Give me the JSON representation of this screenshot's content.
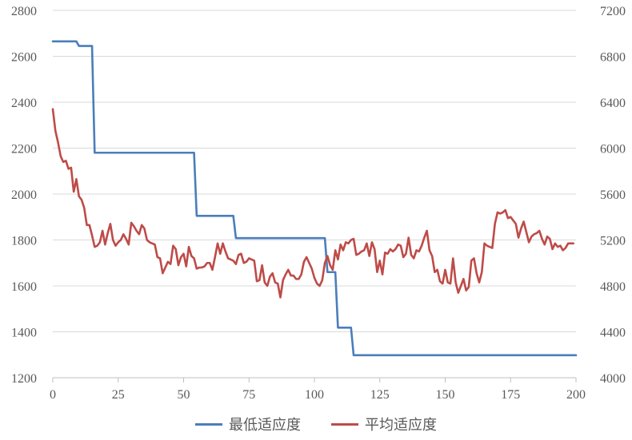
{
  "chart_data": {
    "type": "line",
    "title": "",
    "xlabel": "",
    "ylabel": "",
    "xlim": [
      0,
      200
    ],
    "x_ticks": [
      "0",
      "25",
      "50",
      "75",
      "100",
      "125",
      "150",
      "175",
      "200"
    ],
    "ylim_left": [
      1200,
      2800
    ],
    "y_left_ticks": [
      "1200",
      "1400",
      "1600",
      "1800",
      "2000",
      "2200",
      "2400",
      "2600",
      "2800"
    ],
    "ylim_right": [
      4000,
      7200
    ],
    "y_right_ticks": [
      "4000",
      "4400",
      "4800",
      "5200",
      "5600",
      "6000",
      "6400",
      "6800",
      "7200"
    ],
    "grid": "horizontal",
    "legend_position": "bottom",
    "series": [
      {
        "name": "最低适应度",
        "axis": "left",
        "color": "#4a7ebb",
        "points": [
          [
            0,
            2665
          ],
          [
            9,
            2665
          ],
          [
            10,
            2645
          ],
          [
            15,
            2645
          ],
          [
            16,
            2180
          ],
          [
            54,
            2180
          ],
          [
            55,
            1905
          ],
          [
            69,
            1905
          ],
          [
            70,
            1808
          ],
          [
            104,
            1808
          ],
          [
            105,
            1660
          ],
          [
            108,
            1660
          ],
          [
            109,
            1418
          ],
          [
            114,
            1418
          ],
          [
            115,
            1298
          ],
          [
            200,
            1298
          ]
        ]
      },
      {
        "name": "平均适应度",
        "axis": "right",
        "color": "#be4b48",
        "points": [
          [
            0,
            6340
          ],
          [
            1,
            6150
          ],
          [
            2,
            6050
          ],
          [
            3,
            5930
          ],
          [
            4,
            5880
          ],
          [
            5,
            5890
          ],
          [
            6,
            5820
          ],
          [
            7,
            5830
          ],
          [
            8,
            5620
          ],
          [
            9,
            5730
          ],
          [
            10,
            5580
          ],
          [
            11,
            5550
          ],
          [
            12,
            5480
          ],
          [
            13,
            5330
          ],
          [
            14,
            5330
          ],
          [
            15,
            5240
          ],
          [
            16,
            5140
          ],
          [
            17,
            5150
          ],
          [
            18,
            5180
          ],
          [
            19,
            5280
          ],
          [
            20,
            5160
          ],
          [
            21,
            5260
          ],
          [
            22,
            5340
          ],
          [
            23,
            5200
          ],
          [
            24,
            5150
          ],
          [
            25,
            5180
          ],
          [
            26,
            5200
          ],
          [
            27,
            5250
          ],
          [
            28,
            5210
          ],
          [
            29,
            5160
          ],
          [
            30,
            5350
          ],
          [
            31,
            5320
          ],
          [
            32,
            5280
          ],
          [
            33,
            5250
          ],
          [
            34,
            5330
          ],
          [
            35,
            5300
          ],
          [
            36,
            5200
          ],
          [
            37,
            5180
          ],
          [
            38,
            5170
          ],
          [
            39,
            5160
          ],
          [
            40,
            5050
          ],
          [
            41,
            5040
          ],
          [
            42,
            4910
          ],
          [
            43,
            4960
          ],
          [
            44,
            5010
          ],
          [
            45,
            4990
          ],
          [
            46,
            5150
          ],
          [
            47,
            5120
          ],
          [
            48,
            4980
          ],
          [
            49,
            5050
          ],
          [
            50,
            5080
          ],
          [
            51,
            4970
          ],
          [
            52,
            5140
          ],
          [
            53,
            5060
          ],
          [
            54,
            5040
          ],
          [
            55,
            4950
          ],
          [
            56,
            4960
          ],
          [
            57,
            4960
          ],
          [
            58,
            4970
          ],
          [
            59,
            5000
          ],
          [
            60,
            5000
          ],
          [
            61,
            4940
          ],
          [
            62,
            5050
          ],
          [
            63,
            5170
          ],
          [
            64,
            5080
          ],
          [
            65,
            5170
          ],
          [
            66,
            5100
          ],
          [
            67,
            5040
          ],
          [
            68,
            5030
          ],
          [
            69,
            5020
          ],
          [
            70,
            4990
          ],
          [
            71,
            5070
          ],
          [
            72,
            5080
          ],
          [
            73,
            5000
          ],
          [
            74,
            5010
          ],
          [
            75,
            5040
          ],
          [
            76,
            5030
          ],
          [
            77,
            5020
          ],
          [
            78,
            4840
          ],
          [
            79,
            4850
          ],
          [
            80,
            4980
          ],
          [
            81,
            4830
          ],
          [
            82,
            4800
          ],
          [
            83,
            4880
          ],
          [
            84,
            4910
          ],
          [
            85,
            4830
          ],
          [
            86,
            4820
          ],
          [
            87,
            4700
          ],
          [
            88,
            4850
          ],
          [
            89,
            4900
          ],
          [
            90,
            4940
          ],
          [
            91,
            4890
          ],
          [
            92,
            4890
          ],
          [
            93,
            4860
          ],
          [
            94,
            4860
          ],
          [
            95,
            4900
          ],
          [
            96,
            5010
          ],
          [
            97,
            5050
          ],
          [
            98,
            5000
          ],
          [
            99,
            4950
          ],
          [
            100,
            4870
          ],
          [
            101,
            4820
          ],
          [
            102,
            4800
          ],
          [
            103,
            4850
          ],
          [
            104,
            5000
          ],
          [
            105,
            5060
          ],
          [
            106,
            4980
          ],
          [
            107,
            4940
          ],
          [
            108,
            5110
          ],
          [
            109,
            5030
          ],
          [
            110,
            5160
          ],
          [
            111,
            5110
          ],
          [
            112,
            5180
          ],
          [
            113,
            5170
          ],
          [
            114,
            5200
          ],
          [
            115,
            5210
          ],
          [
            116,
            5070
          ],
          [
            117,
            5080
          ],
          [
            118,
            5100
          ],
          [
            119,
            5110
          ],
          [
            120,
            5170
          ],
          [
            121,
            5060
          ],
          [
            122,
            5180
          ],
          [
            123,
            5120
          ],
          [
            124,
            4920
          ],
          [
            125,
            5020
          ],
          [
            126,
            4900
          ],
          [
            127,
            5090
          ],
          [
            128,
            5080
          ],
          [
            129,
            5120
          ],
          [
            130,
            5100
          ],
          [
            131,
            5120
          ],
          [
            132,
            5160
          ],
          [
            133,
            5150
          ],
          [
            134,
            5050
          ],
          [
            135,
            5080
          ],
          [
            136,
            5220
          ],
          [
            137,
            5070
          ],
          [
            138,
            5040
          ],
          [
            139,
            5110
          ],
          [
            140,
            5100
          ],
          [
            141,
            5150
          ],
          [
            142,
            5220
          ],
          [
            143,
            5280
          ],
          [
            144,
            5110
          ],
          [
            145,
            5060
          ],
          [
            146,
            4920
          ],
          [
            147,
            4940
          ],
          [
            148,
            4840
          ],
          [
            149,
            4820
          ],
          [
            150,
            4940
          ],
          [
            151,
            4830
          ],
          [
            152,
            4820
          ],
          [
            153,
            5040
          ],
          [
            154,
            4830
          ],
          [
            155,
            4740
          ],
          [
            156,
            4800
          ],
          [
            157,
            4860
          ],
          [
            158,
            4760
          ],
          [
            159,
            4790
          ],
          [
            160,
            5020
          ],
          [
            161,
            5040
          ],
          [
            162,
            4910
          ],
          [
            163,
            4830
          ],
          [
            164,
            4920
          ],
          [
            165,
            5170
          ],
          [
            166,
            5150
          ],
          [
            167,
            5140
          ],
          [
            168,
            5130
          ],
          [
            169,
            5340
          ],
          [
            170,
            5440
          ],
          [
            171,
            5430
          ],
          [
            172,
            5440
          ],
          [
            173,
            5460
          ],
          [
            174,
            5390
          ],
          [
            175,
            5400
          ],
          [
            176,
            5370
          ],
          [
            177,
            5340
          ],
          [
            178,
            5220
          ],
          [
            179,
            5300
          ],
          [
            180,
            5360
          ],
          [
            181,
            5270
          ],
          [
            182,
            5180
          ],
          [
            183,
            5230
          ],
          [
            184,
            5250
          ],
          [
            185,
            5260
          ],
          [
            186,
            5280
          ],
          [
            187,
            5210
          ],
          [
            188,
            5160
          ],
          [
            189,
            5230
          ],
          [
            190,
            5210
          ],
          [
            191,
            5120
          ],
          [
            192,
            5170
          ],
          [
            193,
            5140
          ],
          [
            194,
            5150
          ],
          [
            195,
            5110
          ],
          [
            196,
            5130
          ],
          [
            197,
            5170
          ],
          [
            198,
            5170
          ],
          [
            199,
            5170
          ]
        ]
      }
    ]
  }
}
